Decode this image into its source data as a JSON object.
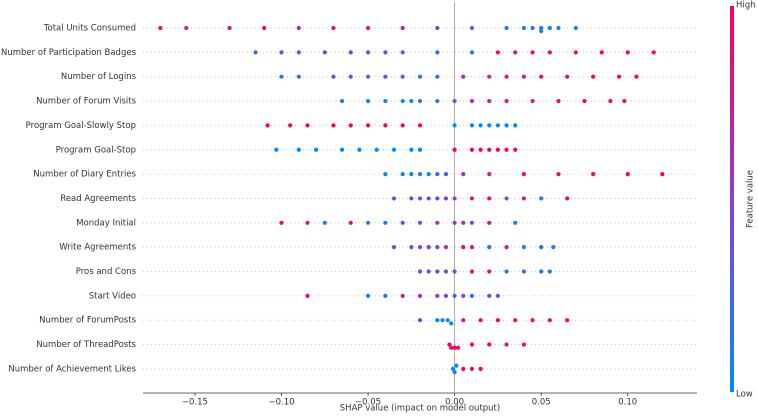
{
  "chart_data": {
    "type": "beeswarm",
    "xlabel": "SHAP value (impact on model output)",
    "xlim": [
      -0.18,
      0.14
    ],
    "xticks": [
      {
        "value": -0.15,
        "label": "−0.15"
      },
      {
        "value": -0.1,
        "label": "−0.10"
      },
      {
        "value": -0.05,
        "label": "−0.05"
      },
      {
        "value": 0,
        "label": "0.00"
      },
      0.05,
      {
        "value": 0.1,
        "label": "0.10"
      }
    ],
    "colormap": [
      "#008bfb",
      "#8a3fd1",
      "#ff0052"
    ],
    "colorbar_label": "Feature value",
    "colorbar_high": "High",
    "colorbar_low": "Low",
    "series": [
      {
        "name": "Total Units Consumed",
        "shap": [
          -0.17,
          -0.155,
          -0.13,
          -0.11,
          -0.09,
          -0.07,
          -0.05,
          -0.03,
          -0.01,
          0.01,
          0.03,
          0.04,
          0.045,
          0.05,
          0.05,
          0.055,
          0.06,
          0.07
        ],
        "feature_value": [
          0.9,
          0.7,
          0.8,
          1,
          0.6,
          0.9,
          0.8,
          0.7,
          0.5,
          0.3,
          0.1,
          0,
          0.1,
          0,
          0.1,
          0,
          0.2,
          0.1
        ]
      },
      {
        "name": "Number of Participation Badges",
        "shap": [
          -0.115,
          -0.1,
          -0.09,
          -0.075,
          -0.06,
          -0.05,
          -0.04,
          -0.03,
          -0.01,
          0.01,
          0.025,
          0.035,
          0.045,
          0.055,
          0.07,
          0.085,
          0.1,
          0.115
        ],
        "feature_value": [
          0.2,
          0.3,
          0.3,
          0.4,
          0.4,
          0.3,
          0.4,
          0.3,
          0.1,
          0.2,
          0.9,
          0.8,
          0.9,
          0.8,
          0.9,
          1,
          0.9,
          1
        ]
      },
      {
        "name": "Number of Logins",
        "shap": [
          -0.1,
          -0.09,
          -0.07,
          -0.06,
          -0.05,
          -0.04,
          -0.03,
          -0.02,
          -0.01,
          0.005,
          0.02,
          0.03,
          0.04,
          0.05,
          0.065,
          0.08,
          0.095,
          0.105
        ],
        "feature_value": [
          0.1,
          0.2,
          0.3,
          0.4,
          0.3,
          0.4,
          0.3,
          0.2,
          0.1,
          0.6,
          0.7,
          0.8,
          0.8,
          0.9,
          0.9,
          1,
          1,
          1
        ]
      },
      {
        "name": "Number of Forum Visits",
        "shap": [
          -0.065,
          -0.05,
          -0.04,
          -0.03,
          -0.025,
          -0.02,
          -0.01,
          0,
          0.01,
          0.02,
          0.03,
          0.045,
          0.06,
          0.075,
          0.09,
          0.098
        ],
        "feature_value": [
          0.1,
          0,
          0.1,
          0,
          0.1,
          0.2,
          0.1,
          0.3,
          0.6,
          0.7,
          0.8,
          0.8,
          0.9,
          1,
          1,
          0.9
        ]
      },
      {
        "name": "Program Goal-Slowly Stop",
        "shap": [
          -0.108,
          -0.095,
          -0.085,
          -0.07,
          -0.06,
          -0.05,
          -0.04,
          -0.03,
          -0.02,
          0,
          0.01,
          0.015,
          0.02,
          0.025,
          0.03,
          0.035
        ],
        "feature_value": [
          1,
          1,
          1,
          1,
          1,
          1,
          1,
          1,
          1,
          0,
          0,
          0,
          0,
          0,
          0,
          0
        ]
      },
      {
        "name": "Program Goal-Stop",
        "shap": [
          -0.103,
          -0.09,
          -0.08,
          -0.065,
          -0.055,
          -0.045,
          -0.035,
          -0.025,
          -0.02,
          0,
          0.01,
          0.015,
          0.02,
          0.025,
          0.03,
          0.035
        ],
        "feature_value": [
          0,
          0,
          0,
          0,
          0,
          0,
          0,
          0,
          0,
          1,
          1,
          1,
          1,
          1,
          1,
          1
        ]
      },
      {
        "name": "Number of Diary Entries",
        "shap": [
          -0.04,
          -0.03,
          -0.025,
          -0.02,
          -0.015,
          -0.01,
          -0.005,
          0.005,
          0.02,
          0.04,
          0.06,
          0.08,
          0.1,
          0.12
        ],
        "feature_value": [
          0,
          0.1,
          0,
          0.1,
          0,
          0.2,
          0.3,
          0.6,
          0.8,
          0.9,
          0.9,
          1,
          1,
          1
        ]
      },
      {
        "name": "Read Agreements",
        "shap": [
          -0.035,
          -0.025,
          -0.02,
          -0.015,
          -0.01,
          -0.005,
          0,
          0.01,
          0.02,
          0.03,
          0.04,
          0.05,
          0.065
        ],
        "feature_value": [
          0.4,
          0.4,
          0.3,
          0.4,
          0.4,
          0.5,
          0.5,
          0.8,
          0.9,
          0.3,
          0.8,
          0.1,
          0.9
        ]
      },
      {
        "name": "Monday Initial",
        "shap": [
          -0.1,
          -0.085,
          -0.075,
          -0.06,
          -0.05,
          -0.04,
          -0.03,
          -0.02,
          -0.01,
          0,
          0.005,
          0.01,
          0.02,
          0.035
        ],
        "feature_value": [
          0.9,
          0.8,
          0.1,
          0.9,
          0.2,
          0.1,
          0.5,
          0.3,
          0.6,
          0.5,
          0.7,
          0.4,
          0.8,
          0.1
        ]
      },
      {
        "name": "Write Agreements",
        "shap": [
          -0.035,
          -0.025,
          -0.02,
          -0.015,
          -0.01,
          -0.005,
          0.005,
          0.01,
          0.02,
          0.03,
          0.04,
          0.05,
          0.057
        ],
        "feature_value": [
          0.4,
          0.3,
          0.4,
          0.5,
          0.4,
          0.6,
          0.9,
          0.8,
          0.2,
          0.7,
          0.1,
          0.2,
          0.1
        ]
      },
      {
        "name": "Pros and Cons",
        "shap": [
          -0.02,
          -0.015,
          -0.01,
          -0.005,
          0,
          0.01,
          0.02,
          0.03,
          0.04,
          0.05,
          0.055
        ],
        "feature_value": [
          0.4,
          0.5,
          0.4,
          0.5,
          0.3,
          0.9,
          0.8,
          0.1,
          0.2,
          0.1,
          0.1
        ]
      },
      {
        "name": "Start Video",
        "shap": [
          -0.085,
          -0.05,
          -0.04,
          -0.03,
          -0.02,
          -0.01,
          -0.005,
          0,
          0.005,
          0.01,
          0.02,
          0.025
        ],
        "feature_value": [
          0.9,
          0.1,
          0.2,
          0.8,
          0.6,
          0.5,
          0.4,
          0.3,
          0.5,
          0.2,
          0.4,
          0.3
        ]
      },
      {
        "name": "Number of ForumPosts",
        "shap": [
          -0.02,
          -0.01,
          -0.007,
          -0.004,
          -0.002,
          0.005,
          0.015,
          0.025,
          0.035,
          0.045,
          0.055,
          0.065
        ],
        "feature_value": [
          0.4,
          0,
          0,
          0.1,
          0,
          0.8,
          0.9,
          1,
          0.9,
          1,
          0.9,
          1
        ]
      },
      {
        "name": "Number of ThreadPosts",
        "shap": [
          -0.003,
          -0.002,
          0,
          0.002,
          0.01,
          0.02,
          0.03,
          0.04
        ],
        "feature_value": [
          1,
          0.9,
          1,
          0.9,
          1,
          1,
          0.9,
          1
        ]
      },
      {
        "name": "Number of Achievement Likes",
        "shap": [
          -0.001,
          0,
          0.001,
          0.005,
          0.01,
          0.015
        ],
        "feature_value": [
          0,
          0.1,
          0.1,
          1,
          0.9,
          1
        ]
      }
    ]
  }
}
